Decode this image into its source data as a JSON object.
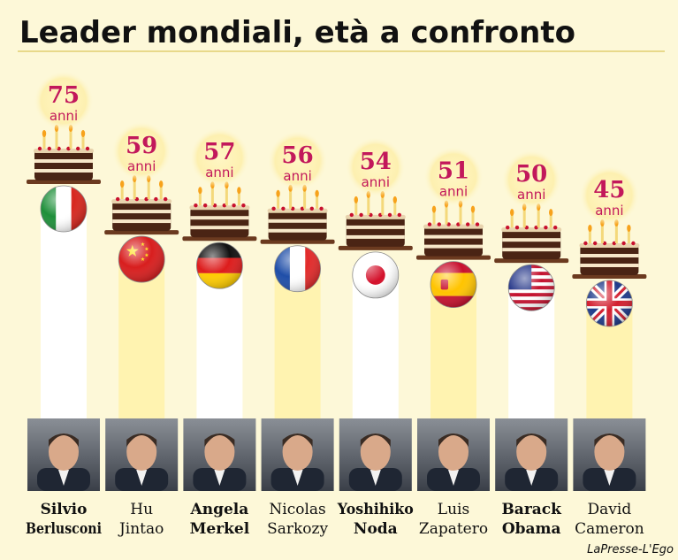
{
  "title": "Leader mondiali, età a confronto",
  "credit": "LaPresse-L'Ego",
  "unit": "anni",
  "colors": {
    "background": "#fdf8d8",
    "age_text": "#c2185b",
    "column_light": "#fff3b0",
    "column_white": "#ffffff",
    "cake_dark": "#4a2414",
    "cake_cream": "#f7e7c9",
    "candle": "#f4d87a",
    "flame": "#f7a21b"
  },
  "chart_data": {
    "type": "bar",
    "categories": [
      "Silvio Berlusconi",
      "Hu Jintao",
      "Angela Merkel",
      "Nicolas Sarkozy",
      "Yoshihiko Noda",
      "Luis Zapatero",
      "Barack Obama",
      "David Cameron"
    ],
    "values": [
      75,
      59,
      57,
      56,
      54,
      51,
      50,
      45
    ],
    "series": [
      {
        "values": [
          75,
          59,
          57,
          56,
          54,
          51,
          50,
          45
        ]
      }
    ],
    "leaders": [
      {
        "first": "Silvio",
        "last": "Berlusconi",
        "age": 75,
        "bold": true,
        "flag": "italy"
      },
      {
        "first": "Hu",
        "last": "Jintao",
        "age": 59,
        "bold": false,
        "flag": "china"
      },
      {
        "first": "Angela",
        "last": "Merkel",
        "age": 57,
        "bold": true,
        "flag": "germany"
      },
      {
        "first": "Nicolas",
        "last": "Sarkozy",
        "age": 56,
        "bold": false,
        "flag": "france"
      },
      {
        "first": "Yoshihiko",
        "last": "Noda",
        "age": 54,
        "bold": true,
        "flag": "japan"
      },
      {
        "first": "Luis",
        "last": "Zapatero",
        "age": 51,
        "bold": false,
        "flag": "spain"
      },
      {
        "first": "Barack",
        "last": "Obama",
        "age": 50,
        "bold": true,
        "flag": "usa"
      },
      {
        "first": "David",
        "last": "Cameron",
        "age": 45,
        "bold": false,
        "flag": "uk"
      }
    ]
  }
}
